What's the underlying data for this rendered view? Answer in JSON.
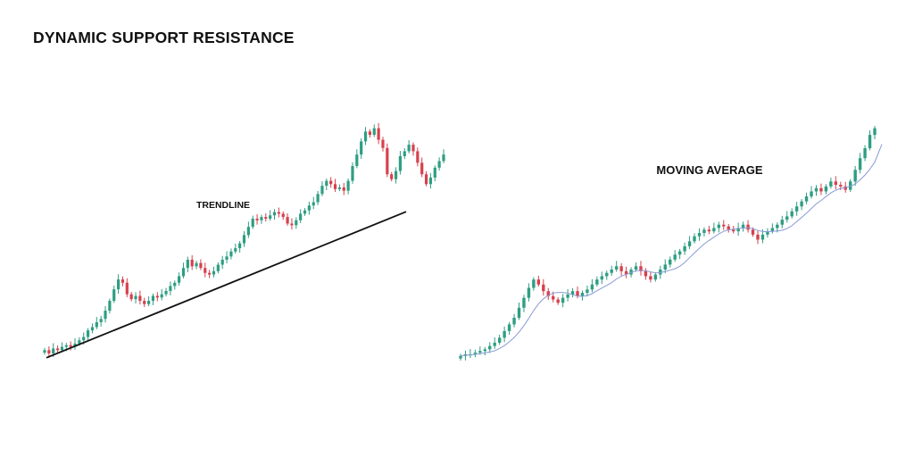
{
  "title": "DYNAMIC SUPPORT RESISTANCE",
  "colors": {
    "bullish": "#2e9e82",
    "bearish": "#d7404e",
    "trendline": "#111111",
    "moving_average": "#8a9ad6"
  },
  "chart_data": [
    {
      "type": "candlestick",
      "label": "TRENDLINE",
      "grid": false,
      "axes": "none",
      "overlay": {
        "type": "trendline",
        "role": "dynamic support",
        "start_y": 0,
        "end_y": 97
      },
      "ylim": [
        -5,
        140
      ],
      "closes": [
        3,
        1,
        4,
        3,
        5,
        6,
        5,
        7,
        9,
        11,
        15,
        17,
        20,
        22,
        27,
        33,
        40,
        46,
        44,
        37,
        34,
        36,
        33,
        31,
        33,
        36,
        35,
        37,
        39,
        42,
        44,
        48,
        53,
        58,
        54,
        56,
        53,
        50,
        49,
        51,
        55,
        58,
        60,
        63,
        65,
        68,
        73,
        78,
        83,
        82,
        84,
        83,
        85,
        87,
        86,
        84,
        80,
        79,
        82,
        86,
        88,
        91,
        93,
        98,
        103,
        106,
        104,
        101,
        102,
        100,
        106,
        115,
        122,
        130,
        136,
        134,
        138,
        131,
        126,
        110,
        107,
        112,
        121,
        124,
        128,
        124,
        117,
        110,
        104,
        108,
        114,
        118,
        122
      ]
    },
    {
      "type": "candlestick",
      "label": "MOVING AVERAGE",
      "grid": false,
      "axes": "none",
      "overlay": {
        "type": "moving_average",
        "role": "dynamic support"
      },
      "ylim": [
        -5,
        140
      ],
      "closes": [
        1,
        2,
        2,
        3,
        4,
        5,
        7,
        9,
        12,
        16,
        20,
        24,
        30,
        36,
        42,
        47,
        44,
        40,
        37,
        35,
        33,
        36,
        38,
        40,
        37,
        39,
        41,
        44,
        47,
        49,
        51,
        53,
        55,
        52,
        50,
        53,
        55,
        52,
        49,
        47,
        50,
        53,
        56,
        59,
        62,
        64,
        67,
        70,
        73,
        75,
        77,
        76,
        78,
        80,
        79,
        77,
        76,
        78,
        80,
        77,
        74,
        71,
        74,
        76,
        78,
        80,
        83,
        85,
        88,
        91,
        94,
        97,
        100,
        102,
        100,
        103,
        106,
        104,
        103,
        101,
        106,
        113,
        120,
        126,
        134,
        138
      ]
    }
  ]
}
